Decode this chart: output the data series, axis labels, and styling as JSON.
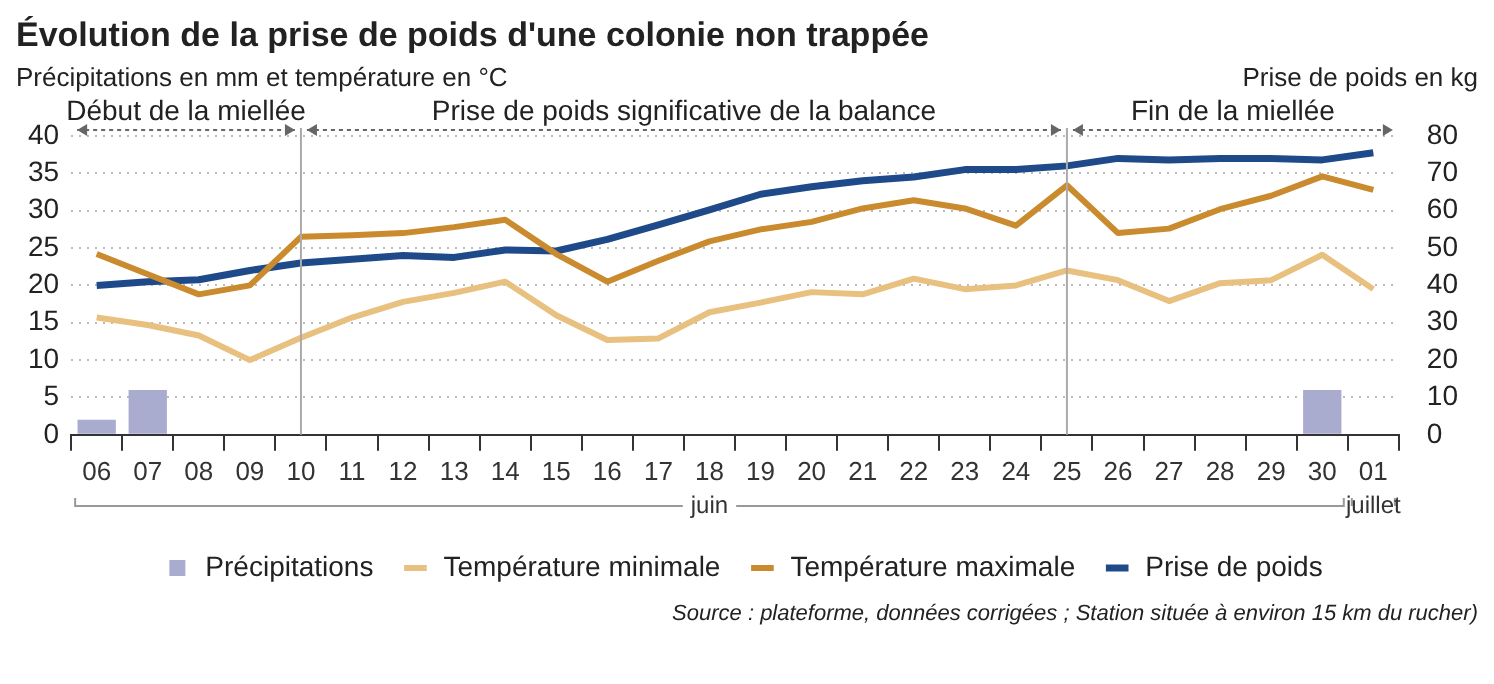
{
  "chart_data": {
    "type": "line",
    "title": "Évolution de la prise de poids d'une colonie non trappée",
    "ylabel": "Précipitations en mm et température en °C",
    "y2label": "Prise de poids en kg",
    "categories": [
      "06",
      "07",
      "08",
      "09",
      "10",
      "11",
      "12",
      "13",
      "14",
      "15",
      "16",
      "17",
      "18",
      "19",
      "20",
      "21",
      "22",
      "23",
      "24",
      "25",
      "26",
      "27",
      "28",
      "29",
      "30",
      "01"
    ],
    "series": [
      {
        "name": "Précipitations",
        "type": "bar",
        "color": "#a9abcf",
        "values": [
          2,
          6,
          0,
          0,
          0,
          0,
          0,
          0,
          0,
          0,
          0,
          0,
          0,
          0,
          0,
          0,
          0,
          0,
          0,
          0,
          0,
          0,
          0,
          0,
          6,
          0
        ]
      },
      {
        "name": "Température minimale",
        "color": "#e8c07f",
        "values": [
          15.7,
          14.7,
          13.3,
          10,
          13,
          15.7,
          17.8,
          19,
          20.5,
          16,
          12.7,
          12.9,
          16.4,
          17.7,
          19.1,
          18.8,
          20.9,
          19.5,
          20,
          22,
          20.7,
          17.9,
          20.3,
          20.7,
          24.1,
          19.5
        ]
      },
      {
        "name": "Température maximale",
        "color": "#c98b2e",
        "values": [
          24.2,
          21.5,
          18.8,
          20,
          26.5,
          26.7,
          27,
          27.8,
          28.8,
          24.2,
          20.5,
          23.3,
          25.9,
          27.5,
          28.5,
          30.3,
          31.4,
          30.3,
          28,
          33.4,
          27,
          27.6,
          30.2,
          32,
          34.6,
          32.8
        ]
      },
      {
        "name": "Prise de poids",
        "axis": "y2",
        "color": "#1f4a8a",
        "values": [
          40,
          41,
          41.5,
          44,
          46,
          47,
          48,
          47.5,
          49.5,
          49.2,
          52.3,
          56.2,
          60.2,
          64.4,
          66.4,
          68,
          69,
          71,
          71,
          72,
          74,
          73.6,
          74,
          74,
          73.6,
          75.5
        ]
      }
    ],
    "ylim": [
      0,
      40
    ],
    "yticks": [
      0,
      5,
      10,
      15,
      20,
      25,
      30,
      35,
      40
    ],
    "y2lim": [
      0,
      80
    ],
    "y2ticks": [
      0,
      10,
      20,
      30,
      40,
      50,
      60,
      70,
      80
    ],
    "grid": "y",
    "legend": "bottom",
    "ref_lines": [
      {
        "axis": "x",
        "value": "10",
        "color": "#aaaaaa"
      },
      {
        "axis": "x",
        "value": "25",
        "color": "#aaaaaa"
      }
    ],
    "annotations": [
      "Début de la miellée",
      "Prise de poids significative de la balance",
      "Fin de la miellée",
      "juin",
      "juillet",
      "Source : plateforme, données corrigées ; Station située à environ 15 km du rucher)"
    ]
  }
}
